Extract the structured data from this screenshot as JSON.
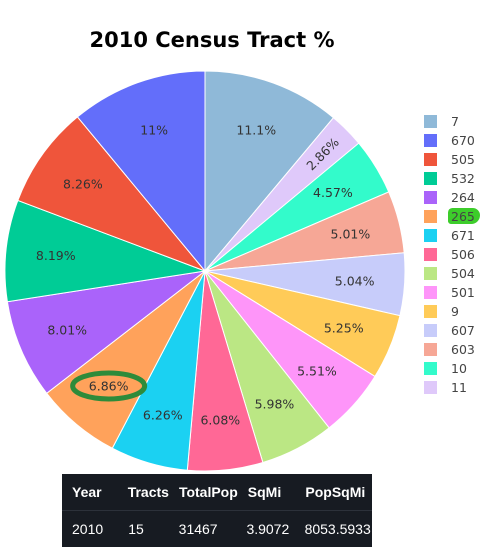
{
  "title": "2010 Census Tract %",
  "chart_data": {
    "type": "pie",
    "title": "2010 Census Tract %",
    "slices": [
      {
        "label": "7",
        "value": 11.1,
        "text": "11.1%",
        "color": "#8fb9d8"
      },
      {
        "label": "11",
        "value": 2.86,
        "text": "2.86%",
        "color": "#dfc9fa"
      },
      {
        "label": "10",
        "value": 4.57,
        "text": "4.57%",
        "color": "#33fbcb"
      },
      {
        "label": "603",
        "value": 5.01,
        "text": "5.01%",
        "color": "#f6a796"
      },
      {
        "label": "607",
        "value": 5.04,
        "text": "5.04%",
        "color": "#c7ccfa"
      },
      {
        "label": "9",
        "value": 5.25,
        "text": "5.25%",
        "color": "#ffcb58"
      },
      {
        "label": "501",
        "value": 5.51,
        "text": "5.51%",
        "color": "#fe95f9"
      },
      {
        "label": "504",
        "value": 5.98,
        "text": "5.98%",
        "color": "#bbe784"
      },
      {
        "label": "506",
        "value": 6.08,
        "text": "6.08%",
        "color": "#ff6896"
      },
      {
        "label": "671",
        "value": 6.26,
        "text": "6.26%",
        "color": "#1bd1f2"
      },
      {
        "label": "265",
        "value": 6.86,
        "text": "6.86%",
        "color": "#ffa25b"
      },
      {
        "label": "264",
        "value": 8.01,
        "text": "8.01%",
        "color": "#aa63fa"
      },
      {
        "label": "532",
        "value": 8.19,
        "text": "8.19%",
        "color": "#00cc96"
      },
      {
        "label": "505",
        "value": 8.26,
        "text": "8.26%",
        "color": "#ef553b"
      },
      {
        "label": "670",
        "value": 11.0,
        "text": "11%",
        "color": "#636efa"
      }
    ],
    "legend": [
      "7",
      "670",
      "505",
      "532",
      "264",
      "265",
      "671",
      "506",
      "504",
      "501",
      "9",
      "607",
      "603",
      "10",
      "11"
    ],
    "legend_placement": "right",
    "highlighted": [
      "6.86%",
      "265"
    ]
  },
  "table": {
    "headers": [
      "Year",
      "Tracts",
      "TotalPop",
      "SqMi",
      "PopSqMi"
    ],
    "rows": [
      [
        "2010",
        "15",
        "31467",
        "3.9072",
        "8053.5933"
      ]
    ]
  }
}
